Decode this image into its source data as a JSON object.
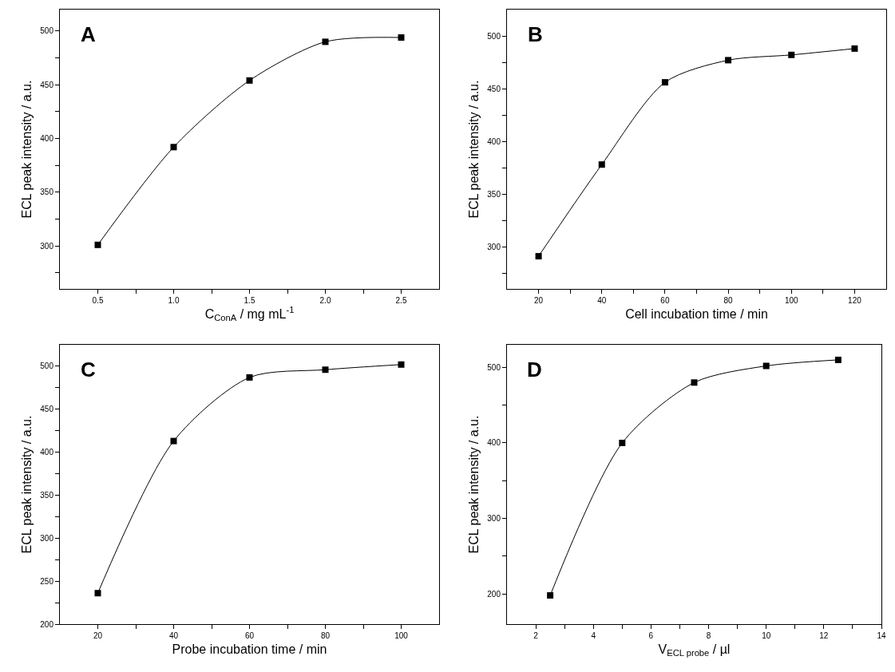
{
  "chart_data": [
    {
      "type": "line",
      "title": "A",
      "xlabel": "C$_{ConA}$ / mg mL$^{-1}$",
      "ylabel": "ECL peak intensity / a.u.",
      "x": [
        0.5,
        1.0,
        1.5,
        2.0,
        2.5
      ],
      "series": [
        {
          "color": "#000000",
          "values": [
            301,
            392,
            454,
            490,
            494
          ]
        }
      ],
      "xlim": [
        0.25,
        2.75
      ],
      "xticks": [
        {
          "value": 0.5,
          "label": "0.5"
        },
        {
          "value": 0.75,
          "label": null
        },
        {
          "value": 1.0,
          "label": "1.0"
        },
        {
          "value": 1.25,
          "label": null
        },
        {
          "value": 1.5,
          "label": "1.5"
        },
        {
          "value": 1.75,
          "label": null
        },
        {
          "value": 2.0,
          "label": "2.0"
        },
        {
          "value": 2.25,
          "label": null
        },
        {
          "value": 2.5,
          "label": "2.5"
        }
      ],
      "ylim": [
        260,
        520
      ],
      "yticks": [
        {
          "value": 275,
          "label": null
        },
        300,
        {
          "value": 325,
          "label": null
        },
        350,
        {
          "value": 375,
          "label": null
        },
        400,
        {
          "value": 425,
          "label": null
        },
        450,
        {
          "value": 475,
          "label": null
        },
        500
      ],
      "marker": "square",
      "line_style": "solid",
      "grid": false
    },
    {
      "type": "line",
      "title": "B",
      "xlabel": "Cell incubation time / min",
      "ylabel": "ECL peak intensity / a.u.",
      "x": [
        20,
        40,
        60,
        80,
        100,
        120
      ],
      "series": [
        {
          "color": "#000000",
          "values": [
            291,
            378,
            456,
            477,
            482,
            488
          ]
        }
      ],
      "xlim": [
        10,
        130
      ],
      "xticks": [
        20,
        {
          "value": 30,
          "label": null
        },
        40,
        {
          "value": 50,
          "label": null
        },
        60,
        {
          "value": 70,
          "label": null
        },
        80,
        {
          "value": 90,
          "label": null
        },
        100,
        {
          "value": 110,
          "label": null
        },
        120
      ],
      "ylim": [
        260,
        525
      ],
      "yticks": [
        {
          "value": 275,
          "label": null
        },
        300,
        {
          "value": 325,
          "label": null
        },
        350,
        {
          "value": 375,
          "label": null
        },
        400,
        {
          "value": 425,
          "label": null
        },
        450,
        {
          "value": 475,
          "label": null
        },
        500
      ],
      "marker": "square",
      "line_style": "solid",
      "grid": false
    },
    {
      "type": "line",
      "title": "C",
      "xlabel": "Probe incubation time / min",
      "ylabel": "ECL peak intensity / a.u.",
      "x": [
        20,
        40,
        60,
        80,
        100
      ],
      "series": [
        {
          "color": "#000000",
          "values": [
            236,
            413,
            487,
            496,
            502
          ]
        }
      ],
      "xlim": [
        10,
        110
      ],
      "xticks": [
        20,
        {
          "value": 30,
          "label": null
        },
        40,
        {
          "value": 50,
          "label": null
        },
        60,
        {
          "value": 70,
          "label": null
        },
        80,
        {
          "value": 90,
          "label": null
        },
        100
      ],
      "ylim": [
        200,
        525
      ],
      "yticks": [
        200,
        {
          "value": 225,
          "label": null
        },
        250,
        {
          "value": 275,
          "label": null
        },
        300,
        {
          "value": 325,
          "label": null
        },
        350,
        {
          "value": 375,
          "label": null
        },
        400,
        {
          "value": 425,
          "label": null
        },
        450,
        {
          "value": 475,
          "label": null
        },
        500
      ],
      "marker": "square",
      "line_style": "solid",
      "grid": false
    },
    {
      "type": "line",
      "title": "D",
      "xlabel": "V$_{ECL probe}$ / µl",
      "ylabel": "ECL peak intensity / a.u.",
      "x": [
        2.5,
        5,
        7.5,
        10,
        12.5
      ],
      "series": [
        {
          "color": "#000000",
          "values": [
            198,
            400,
            480,
            502,
            510
          ]
        }
      ],
      "xlim": [
        1,
        14
      ],
      "xticks": [
        2,
        {
          "value": 3,
          "label": null
        },
        4,
        {
          "value": 5,
          "label": null
        },
        6,
        {
          "value": 7,
          "label": null
        },
        8,
        {
          "value": 9,
          "label": null
        },
        10,
        {
          "value": 11,
          "label": null
        },
        12,
        {
          "value": 13,
          "label": null
        },
        14
      ],
      "ylim": [
        160,
        530
      ],
      "yticks": [
        200,
        {
          "value": 250,
          "label": null
        },
        300,
        {
          "value": 350,
          "label": null
        },
        400,
        {
          "value": 450,
          "label": null
        },
        500
      ],
      "marker": "square",
      "line_style": "solid",
      "grid": false
    }
  ]
}
